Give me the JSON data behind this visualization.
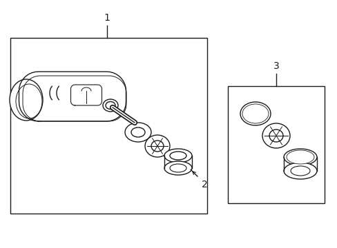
{
  "background_color": "#ffffff",
  "line_color": "#1a1a1a",
  "label1": "1",
  "label2": "2",
  "label3": "3",
  "fig_width": 4.89,
  "fig_height": 3.6
}
